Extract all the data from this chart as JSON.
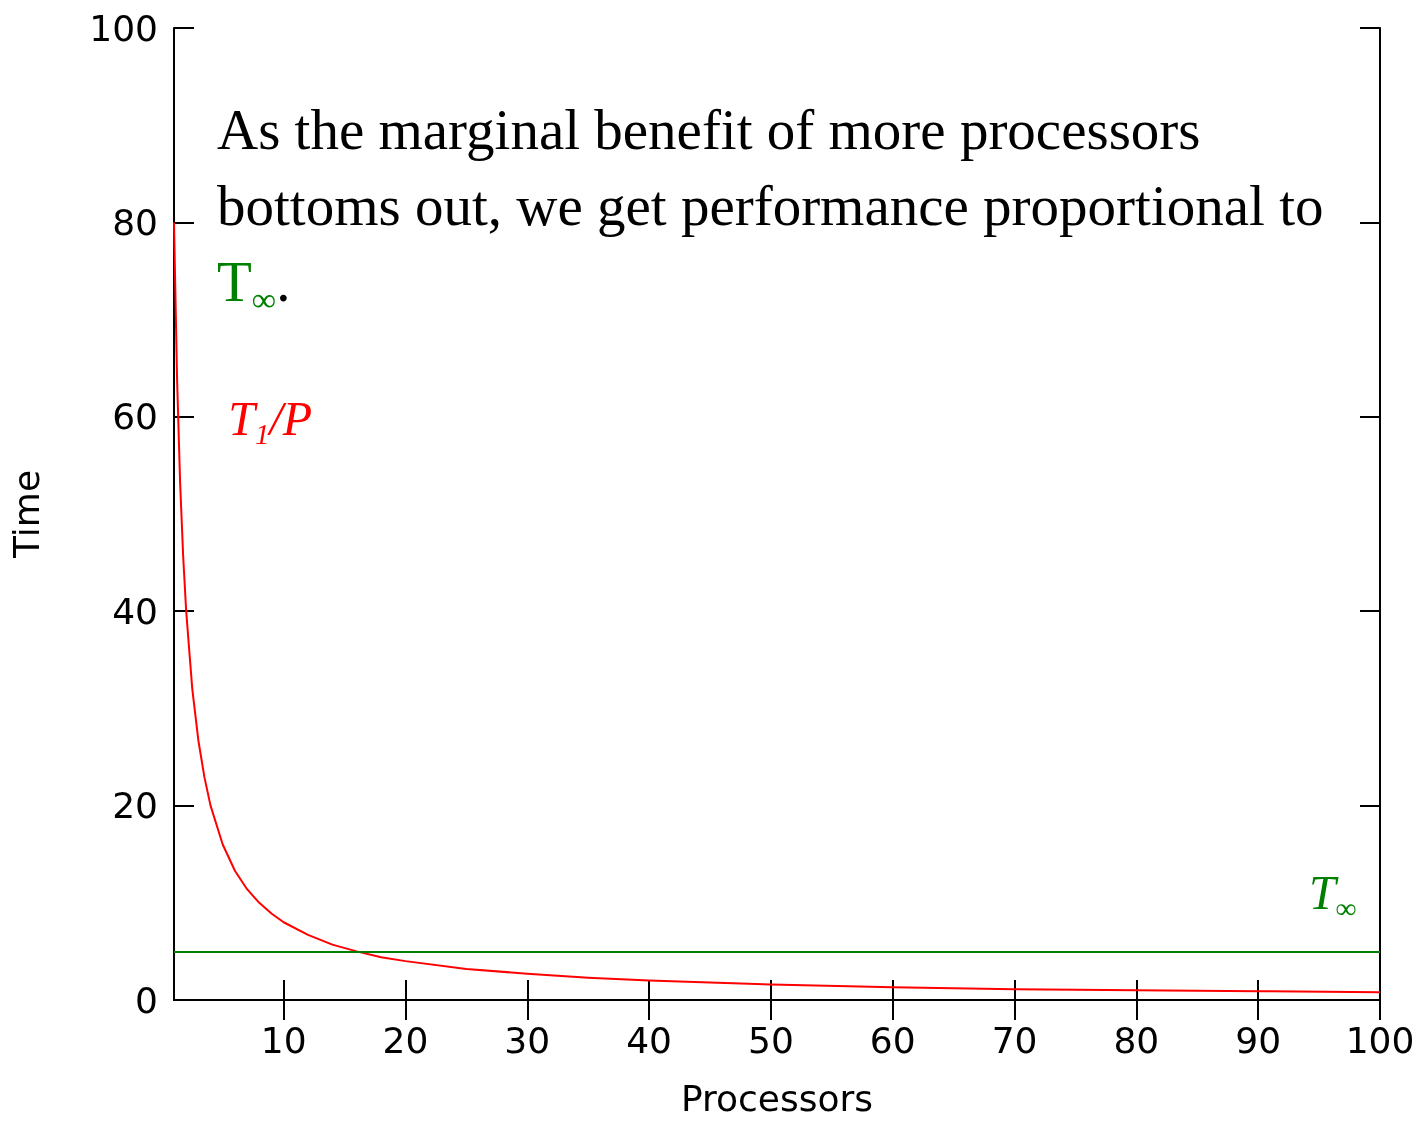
{
  "chart_data": {
    "type": "line",
    "xlabel": "Processors",
    "ylabel": "Time",
    "x": [
      1,
      1.25,
      1.5,
      1.75,
      2,
      2.5,
      3,
      3.5,
      4,
      5,
      6,
      7,
      8,
      9,
      10,
      12,
      14,
      16,
      18,
      20,
      25,
      30,
      35,
      40,
      45,
      50,
      60,
      70,
      80,
      90,
      100
    ],
    "series": [
      {
        "name": "T$_{1}$/P",
        "color": "#ff0000",
        "values": [
          80,
          64,
          53.3,
          45.7,
          40,
          32,
          26.7,
          22.9,
          20,
          16,
          13.3,
          11.4,
          10,
          8.9,
          8,
          6.7,
          5.7,
          5,
          4.4,
          4,
          3.2,
          2.7,
          2.3,
          2,
          1.8,
          1.6,
          1.3,
          1.1,
          1,
          0.9,
          0.8
        ]
      }
    ],
    "ref_lines": [
      {
        "axis": "y",
        "value": 5,
        "label": "T$_{∞}$",
        "color": "#008000"
      }
    ],
    "annotations": [
      "As the marginal benefit of more processors bottoms out, we get performance proportional to T$_{∞}$."
    ],
    "xlim": [
      1,
      100
    ],
    "xticks": [
      10,
      20,
      30,
      40,
      50,
      60,
      70,
      80,
      90,
      100
    ],
    "ylim": [
      0,
      100
    ],
    "yticks": [
      0,
      20,
      40,
      60,
      80,
      100
    ],
    "grid": false,
    "marker": "none",
    "line_style": "solid"
  }
}
